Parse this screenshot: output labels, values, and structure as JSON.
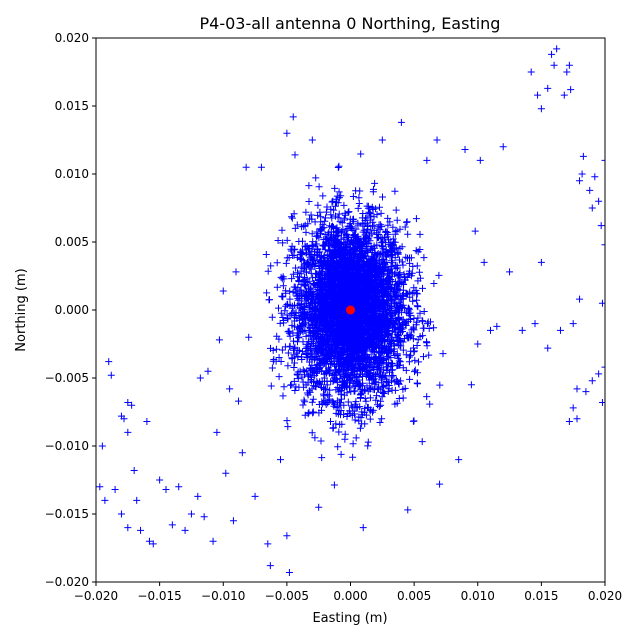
{
  "chart_data": {
    "type": "scatter",
    "title": "P4-03-all antenna 0 Northing, Easting",
    "xlabel": "Easting (m)",
    "ylabel": "Northing (m)",
    "xlim": [
      -0.02,
      0.02
    ],
    "ylim": [
      -0.02,
      0.02
    ],
    "xticks": [
      "−0.020",
      "−0.015",
      "−0.010",
      "−0.005",
      "0.000",
      "0.005",
      "0.010",
      "0.015",
      "0.020"
    ],
    "yticks": [
      "−0.020",
      "−0.015",
      "−0.010",
      "−0.005",
      "0.000",
      "0.005",
      "0.010",
      "0.015",
      "0.020"
    ],
    "grid": false,
    "series": [
      {
        "marker": "+",
        "color": "#0000ff",
        "cluster": {
          "center": [
            0.0,
            0.0
          ],
          "dense_std": [
            0.0022,
            0.0032
          ],
          "extent_x": [
            -0.007,
            0.009
          ],
          "extent_y": [
            -0.014,
            0.014
          ]
        },
        "points": [
          [
            -0.0195,
            -0.01
          ],
          [
            -0.0197,
            -0.013
          ],
          [
            -0.0193,
            -0.014
          ],
          [
            -0.0188,
            -0.0048
          ],
          [
            -0.019,
            -0.0038
          ],
          [
            -0.0185,
            -0.0132
          ],
          [
            -0.018,
            -0.0078
          ],
          [
            -0.0178,
            -0.008
          ],
          [
            -0.0175,
            -0.0068
          ],
          [
            -0.0172,
            -0.007
          ],
          [
            -0.0175,
            -0.009
          ],
          [
            -0.017,
            -0.0118
          ],
          [
            -0.018,
            -0.015
          ],
          [
            -0.0175,
            -0.016
          ],
          [
            -0.0168,
            -0.014
          ],
          [
            -0.0165,
            -0.0162
          ],
          [
            -0.016,
            -0.0082
          ],
          [
            -0.0158,
            -0.017
          ],
          [
            -0.0155,
            -0.0172
          ],
          [
            -0.015,
            -0.0125
          ],
          [
            -0.0145,
            -0.0132
          ],
          [
            -0.014,
            -0.0158
          ],
          [
            -0.0135,
            -0.013
          ],
          [
            -0.013,
            -0.0162
          ],
          [
            -0.0125,
            -0.015
          ],
          [
            -0.012,
            -0.0137
          ],
          [
            -0.0118,
            -0.005
          ],
          [
            -0.0115,
            -0.0152
          ],
          [
            -0.0112,
            -0.0045
          ],
          [
            -0.0108,
            -0.017
          ],
          [
            -0.0105,
            -0.009
          ],
          [
            -0.0103,
            -0.0022
          ],
          [
            -0.01,
            0.0014
          ],
          [
            -0.0098,
            -0.012
          ],
          [
            -0.0095,
            -0.0058
          ],
          [
            -0.0092,
            -0.0155
          ],
          [
            -0.009,
            0.0028
          ],
          [
            -0.0088,
            -0.0067
          ],
          [
            -0.0085,
            -0.0105
          ],
          [
            -0.0082,
            0.0105
          ],
          [
            -0.008,
            -0.002
          ],
          [
            -0.0075,
            -0.0137
          ],
          [
            -0.007,
            0.0105
          ],
          [
            -0.0065,
            -0.0172
          ],
          [
            -0.0063,
            -0.0188
          ],
          [
            -0.0055,
            -0.011
          ],
          [
            -0.005,
            -0.0166
          ],
          [
            -0.0048,
            -0.0193
          ],
          [
            -0.005,
            0.013
          ],
          [
            -0.0045,
            0.0142
          ],
          [
            -0.003,
            0.0125
          ],
          [
            -0.0025,
            -0.0145
          ],
          [
            0.001,
            -0.016
          ],
          [
            0.0025,
            0.0125
          ],
          [
            0.004,
            0.0138
          ],
          [
            0.0045,
            -0.0147
          ],
          [
            0.006,
            0.011
          ],
          [
            0.0068,
            0.0125
          ],
          [
            0.007,
            -0.0128
          ],
          [
            0.0085,
            -0.011
          ],
          [
            0.009,
            0.0118
          ],
          [
            0.0095,
            -0.0055
          ],
          [
            0.0098,
            0.0058
          ],
          [
            0.01,
            -0.0025
          ],
          [
            0.0102,
            0.011
          ],
          [
            0.0105,
            0.0035
          ],
          [
            0.011,
            -0.0015
          ],
          [
            0.0115,
            -0.0012
          ],
          [
            0.012,
            0.012
          ],
          [
            0.0125,
            0.0028
          ],
          [
            0.0135,
            -0.0015
          ],
          [
            0.0142,
            0.0175
          ],
          [
            0.0145,
            -0.001
          ],
          [
            0.0147,
            0.0158
          ],
          [
            0.015,
            0.0148
          ],
          [
            0.015,
            0.0035
          ],
          [
            0.0155,
            0.0163
          ],
          [
            0.0155,
            -0.0028
          ],
          [
            0.0158,
            0.0188
          ],
          [
            0.016,
            0.018
          ],
          [
            0.0162,
            0.0192
          ],
          [
            0.0165,
            -0.0015
          ],
          [
            0.0168,
            0.0158
          ],
          [
            0.017,
            0.0175
          ],
          [
            0.0172,
            0.018
          ],
          [
            0.0173,
            0.0162
          ],
          [
            0.0175,
            -0.001
          ],
          [
            0.0172,
            -0.0082
          ],
          [
            0.0175,
            -0.0072
          ],
          [
            0.0178,
            -0.0058
          ],
          [
            0.018,
            0.0008
          ],
          [
            0.018,
            0.0095
          ],
          [
            0.0182,
            0.01
          ],
          [
            0.0183,
            0.0113
          ],
          [
            0.0185,
            -0.006
          ],
          [
            0.0188,
            0.0088
          ],
          [
            0.019,
            -0.0052
          ],
          [
            0.0192,
            0.0098
          ],
          [
            0.0195,
            0.008
          ],
          [
            0.0195,
            -0.0047
          ],
          [
            0.0197,
            0.0062
          ],
          [
            0.0198,
            0.0005
          ],
          [
            0.0198,
            -0.0068
          ],
          [
            0.02,
            0.011
          ],
          [
            0.02,
            0.0048
          ],
          [
            0.02,
            -0.0042
          ],
          [
            0.0178,
            -0.008
          ],
          [
            0.019,
            0.0075
          ]
        ]
      },
      {
        "marker": "o",
        "color": "#ff0000",
        "points": [
          [
            0.0,
            0.0
          ]
        ]
      }
    ]
  }
}
